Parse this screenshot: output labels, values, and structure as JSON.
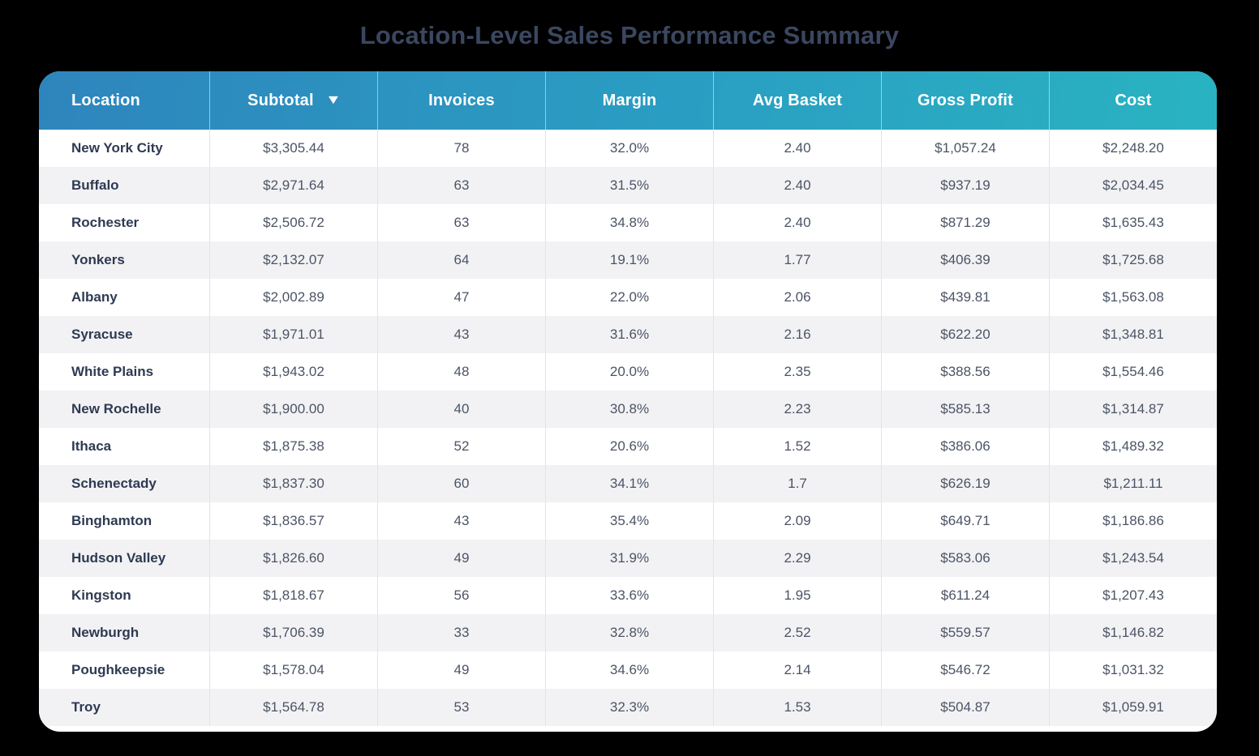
{
  "page": {
    "title": "Location-Level Sales Performance Summary",
    "background_color": "#000000",
    "title_color": "#3b4760"
  },
  "table": {
    "columns": [
      "Location",
      "Subtotal",
      "Invoices",
      "Margin",
      "Avg Basket",
      "Gross Profit",
      "Cost"
    ],
    "column_keys": [
      "location",
      "subtotal",
      "invoices",
      "margin",
      "avg_basket",
      "gross_profit",
      "cost"
    ],
    "sort_icon": "▼",
    "sorted_column": "Subtotal",
    "sort_direction": "desc",
    "header_gradient": [
      "#2e85bd",
      "#29b3c1"
    ],
    "stripe_color": "#f2f2f4",
    "rows": [
      {
        "location": "New York City",
        "subtotal": "$3,305.44",
        "invoices": "78",
        "margin": "32.0%",
        "avg_basket": "2.40",
        "gross_profit": "$1,057.24",
        "cost": "$2,248.20"
      },
      {
        "location": "Buffalo",
        "subtotal": "$2,971.64",
        "invoices": "63",
        "margin": "31.5%",
        "avg_basket": "2.40",
        "gross_profit": "$937.19",
        "cost": "$2,034.45"
      },
      {
        "location": "Rochester",
        "subtotal": "$2,506.72",
        "invoices": "63",
        "margin": "34.8%",
        "avg_basket": "2.40",
        "gross_profit": "$871.29",
        "cost": "$1,635.43"
      },
      {
        "location": "Yonkers",
        "subtotal": "$2,132.07",
        "invoices": "64",
        "margin": "19.1%",
        "avg_basket": "1.77",
        "gross_profit": "$406.39",
        "cost": "$1,725.68"
      },
      {
        "location": "Albany",
        "subtotal": "$2,002.89",
        "invoices": "47",
        "margin": "22.0%",
        "avg_basket": "2.06",
        "gross_profit": "$439.81",
        "cost": "$1,563.08"
      },
      {
        "location": "Syracuse",
        "subtotal": "$1,971.01",
        "invoices": "43",
        "margin": "31.6%",
        "avg_basket": "2.16",
        "gross_profit": "$622.20",
        "cost": "$1,348.81"
      },
      {
        "location": "White Plains",
        "subtotal": "$1,943.02",
        "invoices": "48",
        "margin": "20.0%",
        "avg_basket": "2.35",
        "gross_profit": "$388.56",
        "cost": "$1,554.46"
      },
      {
        "location": "New Rochelle",
        "subtotal": "$1,900.00",
        "invoices": "40",
        "margin": "30.8%",
        "avg_basket": "2.23",
        "gross_profit": "$585.13",
        "cost": "$1,314.87"
      },
      {
        "location": "Ithaca",
        "subtotal": "$1,875.38",
        "invoices": "52",
        "margin": "20.6%",
        "avg_basket": "1.52",
        "gross_profit": "$386.06",
        "cost": "$1,489.32"
      },
      {
        "location": "Schenectady",
        "subtotal": "$1,837.30",
        "invoices": "60",
        "margin": "34.1%",
        "avg_basket": "1.7",
        "gross_profit": "$626.19",
        "cost": "$1,211.11"
      },
      {
        "location": "Binghamton",
        "subtotal": "$1,836.57",
        "invoices": "43",
        "margin": "35.4%",
        "avg_basket": "2.09",
        "gross_profit": "$649.71",
        "cost": "$1,186.86"
      },
      {
        "location": "Hudson Valley",
        "subtotal": "$1,826.60",
        "invoices": "49",
        "margin": "31.9%",
        "avg_basket": "2.29",
        "gross_profit": "$583.06",
        "cost": "$1,243.54"
      },
      {
        "location": "Kingston",
        "subtotal": "$1,818.67",
        "invoices": "56",
        "margin": "33.6%",
        "avg_basket": "1.95",
        "gross_profit": "$611.24",
        "cost": "$1,207.43"
      },
      {
        "location": "Newburgh",
        "subtotal": "$1,706.39",
        "invoices": "33",
        "margin": "32.8%",
        "avg_basket": "2.52",
        "gross_profit": "$559.57",
        "cost": "$1,146.82"
      },
      {
        "location": "Poughkeepsie",
        "subtotal": "$1,578.04",
        "invoices": "49",
        "margin": "34.6%",
        "avg_basket": "2.14",
        "gross_profit": "$546.72",
        "cost": "$1,031.32"
      },
      {
        "location": "Troy",
        "subtotal": "$1,564.78",
        "invoices": "53",
        "margin": "32.3%",
        "avg_basket": "1.53",
        "gross_profit": "$504.87",
        "cost": "$1,059.91"
      }
    ]
  },
  "chart_data": {
    "type": "table",
    "title": "Location-Level Sales Performance Summary",
    "columns": [
      "Location",
      "Subtotal",
      "Invoices",
      "Margin",
      "Avg Basket",
      "Gross Profit",
      "Cost"
    ],
    "sort": {
      "column": "Subtotal",
      "direction": "desc"
    },
    "rows": [
      [
        "New York City",
        3305.44,
        78,
        32.0,
        2.4,
        1057.24,
        2248.2
      ],
      [
        "Buffalo",
        2971.64,
        63,
        31.5,
        2.4,
        937.19,
        2034.45
      ],
      [
        "Rochester",
        2506.72,
        63,
        34.8,
        2.4,
        871.29,
        1635.43
      ],
      [
        "Yonkers",
        2132.07,
        64,
        19.1,
        1.77,
        406.39,
        1725.68
      ],
      [
        "Albany",
        2002.89,
        47,
        22.0,
        2.06,
        439.81,
        1563.08
      ],
      [
        "Syracuse",
        1971.01,
        43,
        31.6,
        2.16,
        622.2,
        1348.81
      ],
      [
        "White Plains",
        1943.02,
        48,
        20.0,
        2.35,
        388.56,
        1554.46
      ],
      [
        "New Rochelle",
        1900.0,
        40,
        30.8,
        2.23,
        585.13,
        1314.87
      ],
      [
        "Ithaca",
        1875.38,
        52,
        20.6,
        1.52,
        386.06,
        1489.32
      ],
      [
        "Schenectady",
        1837.3,
        60,
        34.1,
        1.7,
        626.19,
        1211.11
      ],
      [
        "Binghamton",
        1836.57,
        43,
        35.4,
        2.09,
        649.71,
        1186.86
      ],
      [
        "Hudson Valley",
        1826.6,
        49,
        31.9,
        2.29,
        583.06,
        1243.54
      ],
      [
        "Kingston",
        1818.67,
        56,
        33.6,
        1.95,
        611.24,
        1207.43
      ],
      [
        "Newburgh",
        1706.39,
        33,
        32.8,
        2.52,
        559.57,
        1146.82
      ],
      [
        "Poughkeepsie",
        1578.04,
        49,
        34.6,
        2.14,
        546.72,
        1031.32
      ],
      [
        "Troy",
        1564.78,
        53,
        32.3,
        1.53,
        504.87,
        1059.91
      ]
    ]
  }
}
